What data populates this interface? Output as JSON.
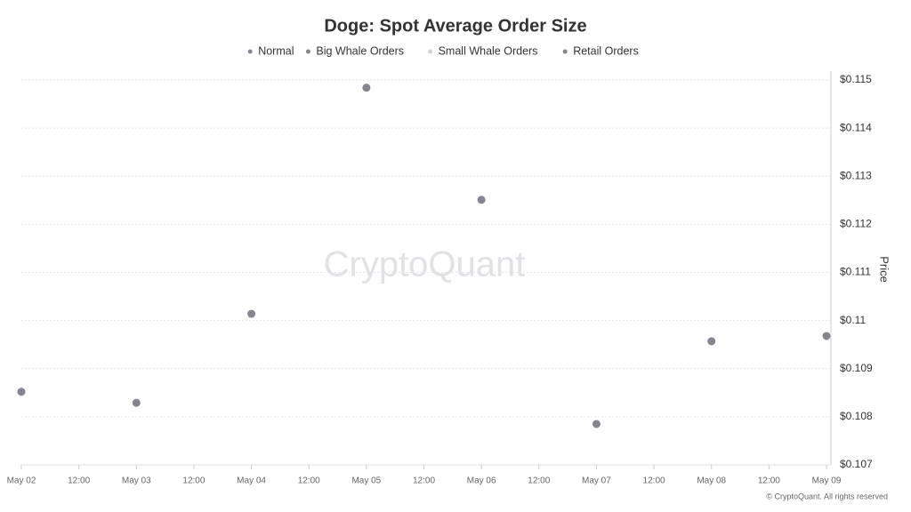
{
  "chart_data": {
    "type": "scatter",
    "title": "Doge: Spot Average Order Size",
    "watermark": "CryptoQuant",
    "credit": "© CryptoQuant. All rights reserved",
    "y_axis_label": "Price",
    "categories": [
      "May 02",
      "May 03",
      "May 04",
      "May 05",
      "May 06",
      "May 07",
      "May 08",
      "May 09"
    ],
    "xticks": [
      "May 02",
      "12:00",
      "May 03",
      "12:00",
      "May 04",
      "12:00",
      "May 05",
      "12:00",
      "May 06",
      "12:00",
      "May 07",
      "12:00",
      "May 08",
      "12:00",
      "May 09"
    ],
    "series": [
      {
        "name": "Normal",
        "color": "#86848f",
        "values": [
          0.10852,
          0.10829,
          0.11014,
          0.11484,
          0.11251,
          0.10785,
          0.10957,
          0.10968
        ]
      },
      {
        "name": "Big Whale Orders",
        "color": "#86848f",
        "values": [
          null,
          null,
          null,
          null,
          null,
          null,
          null,
          null
        ]
      },
      {
        "name": "Small Whale Orders",
        "color": "#d3d2d8",
        "values": [
          null,
          null,
          null,
          null,
          null,
          null,
          null,
          null
        ]
      },
      {
        "name": "Retail Orders",
        "color": "#86848f",
        "values": [
          null,
          null,
          null,
          null,
          null,
          null,
          null,
          null
        ]
      }
    ],
    "ylim": [
      0.107,
      0.115
    ],
    "yticks": [
      {
        "value": 0.115,
        "label": "$0.115"
      },
      {
        "value": 0.114,
        "label": "$0.114"
      },
      {
        "value": 0.113,
        "label": "$0.113"
      },
      {
        "value": 0.112,
        "label": "$0.112"
      },
      {
        "value": 0.111,
        "label": "$0.111"
      },
      {
        "value": 0.11,
        "label": "$0.11"
      },
      {
        "value": 0.109,
        "label": "$0.109"
      },
      {
        "value": 0.108,
        "label": "$0.108"
      },
      {
        "value": 0.107,
        "label": "$0.107"
      }
    ],
    "grid": true
  }
}
